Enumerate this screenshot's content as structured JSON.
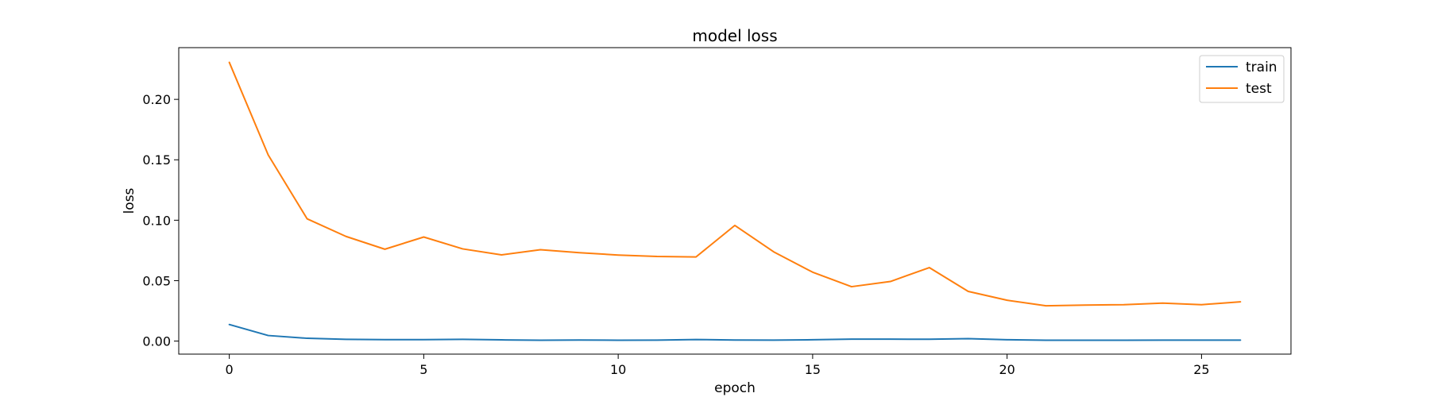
{
  "chart_data": {
    "type": "line",
    "title": "model loss",
    "xlabel": "epoch",
    "ylabel": "loss",
    "xlim": [
      -1.3,
      27.3
    ],
    "ylim": [
      -0.0108,
      0.2428
    ],
    "xticks": [
      0,
      5,
      10,
      15,
      20,
      25
    ],
    "xtick_labels": [
      "0",
      "5",
      "10",
      "15",
      "20",
      "25"
    ],
    "yticks": [
      0.0,
      0.05,
      0.1,
      0.15,
      0.2
    ],
    "ytick_labels": [
      "0.00",
      "0.05",
      "0.10",
      "0.15",
      "0.20"
    ],
    "grid": false,
    "legend_position": "top-right",
    "x": [
      0,
      1,
      2,
      3,
      4,
      5,
      6,
      7,
      8,
      9,
      10,
      11,
      12,
      13,
      14,
      15,
      16,
      17,
      18,
      19,
      20,
      21,
      22,
      23,
      24,
      25,
      26
    ],
    "series": [
      {
        "name": "train",
        "color": "#1f77b4",
        "values": [
          0.0137,
          0.0046,
          0.0023,
          0.0014,
          0.0012,
          0.0012,
          0.0014,
          0.001,
          0.0007,
          0.0009,
          0.0007,
          0.0008,
          0.0013,
          0.0009,
          0.0008,
          0.0011,
          0.0016,
          0.0016,
          0.0015,
          0.002,
          0.0011,
          0.0007,
          0.0007,
          0.0007,
          0.0008,
          0.0008,
          0.0008
        ]
      },
      {
        "name": "test",
        "color": "#ff7f0e",
        "values": [
          0.2306,
          0.154,
          0.1012,
          0.0866,
          0.076,
          0.0861,
          0.0763,
          0.0713,
          0.0756,
          0.0731,
          0.0712,
          0.07,
          0.0696,
          0.0957,
          0.0738,
          0.057,
          0.045,
          0.0493,
          0.0608,
          0.0411,
          0.0338,
          0.0292,
          0.0298,
          0.0301,
          0.0314,
          0.0301,
          0.0325
        ]
      }
    ]
  }
}
